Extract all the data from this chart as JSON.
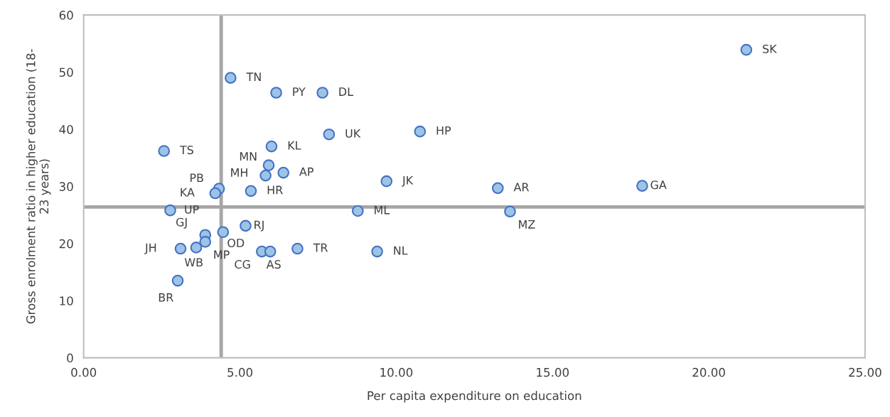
{
  "chart_data": {
    "type": "scatter",
    "xlabel": "Per capita expenditure on education",
    "ylabel": "Gross enrolment ratio in higher education (18-\n23 years)",
    "series": [
      {
        "color": "#9dc3e6",
        "x": [
          21.2,
          4.7,
          6.16,
          7.64,
          7.85,
          10.76,
          2.57,
          6.01,
          5.92,
          5.82,
          6.39,
          4.33,
          4.21,
          5.35,
          9.69,
          13.25,
          17.87,
          2.77,
          8.77,
          13.64,
          5.18,
          3.89,
          4.46,
          3.1,
          3.6,
          3.89,
          5.7,
          5.97,
          6.84,
          9.39,
          3.01
        ],
        "values": [
          53.9,
          49.0,
          46.4,
          46.4,
          39.1,
          39.6,
          36.2,
          37.0,
          33.7,
          31.9,
          32.4,
          29.6,
          28.8,
          29.2,
          30.9,
          29.7,
          30.1,
          25.8,
          25.7,
          25.6,
          23.1,
          21.5,
          22.0,
          19.1,
          19.3,
          20.3,
          18.6,
          18.6,
          19.1,
          18.6,
          13.5
        ]
      }
    ],
    "annotations": [
      {
        "text": "SK",
        "x": 21.2,
        "y": 53.9
      },
      {
        "text": "TN",
        "x": 4.7,
        "y": 49.0
      },
      {
        "text": "PY",
        "x": 6.16,
        "y": 46.4
      },
      {
        "text": "DL",
        "x": 7.64,
        "y": 46.4
      },
      {
        "text": "UK",
        "x": 7.85,
        "y": 39.1
      },
      {
        "text": "HP",
        "x": 10.76,
        "y": 39.6
      },
      {
        "text": "TS",
        "x": 2.57,
        "y": 36.2
      },
      {
        "text": "KL",
        "x": 6.01,
        "y": 37.0
      },
      {
        "text": "MN",
        "x": 5.92,
        "y": 33.7
      },
      {
        "text": "MH",
        "x": 5.82,
        "y": 31.9
      },
      {
        "text": "AP",
        "x": 6.39,
        "y": 32.4
      },
      {
        "text": "PB",
        "x": 4.33,
        "y": 29.6
      },
      {
        "text": "KA",
        "x": 4.21,
        "y": 28.8
      },
      {
        "text": "HR",
        "x": 5.35,
        "y": 29.2
      },
      {
        "text": "JK",
        "x": 9.69,
        "y": 30.9
      },
      {
        "text": "AR",
        "x": 13.25,
        "y": 29.7
      },
      {
        "text": "GA",
        "x": 17.87,
        "y": 30.1
      },
      {
        "text": "UP",
        "x": 2.77,
        "y": 25.8
      },
      {
        "text": "ML",
        "x": 8.77,
        "y": 25.7
      },
      {
        "text": "MZ",
        "x": 13.64,
        "y": 25.6
      },
      {
        "text": "RJ",
        "x": 5.18,
        "y": 23.1
      },
      {
        "text": "GJ",
        "x": 3.89,
        "y": 21.5
      },
      {
        "text": "OD",
        "x": 4.46,
        "y": 22.0
      },
      {
        "text": "JH",
        "x": 3.1,
        "y": 19.1
      },
      {
        "text": "WB",
        "x": 3.6,
        "y": 19.3
      },
      {
        "text": "MP",
        "x": 3.89,
        "y": 20.3
      },
      {
        "text": "CG",
        "x": 5.7,
        "y": 18.6
      },
      {
        "text": "AS",
        "x": 5.97,
        "y": 18.6
      },
      {
        "text": "TR",
        "x": 6.84,
        "y": 19.1
      },
      {
        "text": "NL",
        "x": 9.39,
        "y": 18.6
      },
      {
        "text": "BR",
        "x": 3.01,
        "y": 13.5
      }
    ],
    "ref_lines": [
      {
        "axis": "x",
        "value": 4.4,
        "color": "#a6a6a6"
      },
      {
        "axis": "y",
        "value": 26.4,
        "color": "#a6a6a6"
      }
    ],
    "xlim": [
      0,
      25
    ],
    "xticks": [
      {
        "value": 0,
        "label": "0.00"
      },
      {
        "value": 5,
        "label": "5.00"
      },
      {
        "value": 10,
        "label": "10.00"
      },
      {
        "value": 15,
        "label": "15.00"
      },
      {
        "value": 20,
        "label": "20.00"
      },
      {
        "value": 25,
        "label": "25.00"
      }
    ],
    "ylim": [
      0,
      60
    ],
    "yticks": [
      0,
      10,
      20,
      30,
      40,
      50,
      60
    ],
    "marker": "circle",
    "grid": false,
    "legend": false
  }
}
